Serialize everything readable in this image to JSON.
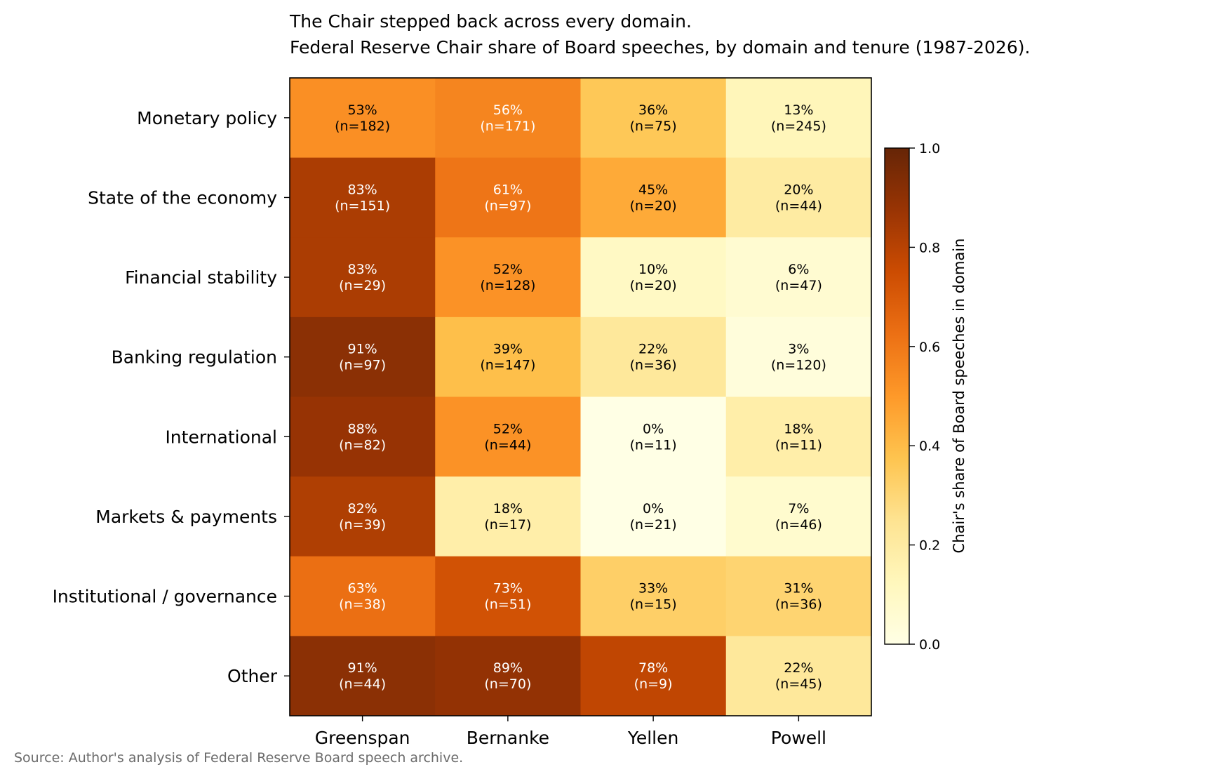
{
  "chart_data": {
    "type": "heatmap",
    "title": "The Chair stepped back across every domain.",
    "subtitle": "Federal Reserve Chair share of Board speeches, by domain and tenure (1987-2026).",
    "columns": [
      "Greenspan",
      "Bernanke",
      "Yellen",
      "Powell"
    ],
    "rows": [
      "Monetary policy",
      "State of the economy",
      "Financial stability",
      "Banking regulation",
      "International",
      "Markets & payments",
      "Institutional / governance",
      "Other"
    ],
    "values": [
      [
        0.53,
        0.56,
        0.36,
        0.13
      ],
      [
        0.83,
        0.61,
        0.45,
        0.2
      ],
      [
        0.83,
        0.52,
        0.1,
        0.06
      ],
      [
        0.91,
        0.39,
        0.22,
        0.03
      ],
      [
        0.88,
        0.52,
        0.0,
        0.18
      ],
      [
        0.82,
        0.18,
        0.0,
        0.07
      ],
      [
        0.63,
        0.73,
        0.33,
        0.31
      ],
      [
        0.91,
        0.89,
        0.78,
        0.22
      ]
    ],
    "cell_labels": [
      [
        [
          "53%",
          "(n=182)"
        ],
        [
          "56%",
          "(n=171)"
        ],
        [
          "36%",
          "(n=75)"
        ],
        [
          "13%",
          "(n=245)"
        ]
      ],
      [
        [
          "83%",
          "(n=151)"
        ],
        [
          "61%",
          "(n=97)"
        ],
        [
          "45%",
          "(n=20)"
        ],
        [
          "20%",
          "(n=44)"
        ]
      ],
      [
        [
          "83%",
          "(n=29)"
        ],
        [
          "52%",
          "(n=128)"
        ],
        [
          "10%",
          "(n=20)"
        ],
        [
          "6%",
          "(n=47)"
        ]
      ],
      [
        [
          "91%",
          "(n=97)"
        ],
        [
          "39%",
          "(n=147)"
        ],
        [
          "22%",
          "(n=36)"
        ],
        [
          "3%",
          "(n=120)"
        ]
      ],
      [
        [
          "88%",
          "(n=82)"
        ],
        [
          "52%",
          "(n=44)"
        ],
        [
          "0%",
          "(n=11)"
        ],
        [
          "18%",
          "(n=11)"
        ]
      ],
      [
        [
          "82%",
          "(n=39)"
        ],
        [
          "18%",
          "(n=17)"
        ],
        [
          "0%",
          "(n=21)"
        ],
        [
          "7%",
          "(n=46)"
        ]
      ],
      [
        [
          "63%",
          "(n=38)"
        ],
        [
          "73%",
          "(n=51)"
        ],
        [
          "33%",
          "(n=15)"
        ],
        [
          "31%",
          "(n=36)"
        ]
      ],
      [
        [
          "91%",
          "(n=44)"
        ],
        [
          "89%",
          "(n=70)"
        ],
        [
          "78%",
          "(n=9)"
        ],
        [
          "22%",
          "(n=45)"
        ]
      ]
    ],
    "colorbar": {
      "label": "Chair's share of Board speeches in domain",
      "range": [
        0.0,
        1.0
      ],
      "ticks": [
        "0.0",
        "0.2",
        "0.4",
        "0.6",
        "0.8",
        "1.0"
      ],
      "colormap": "YlOrBr"
    },
    "source": "Source: Author's analysis of Federal Reserve Board speech archive."
  }
}
